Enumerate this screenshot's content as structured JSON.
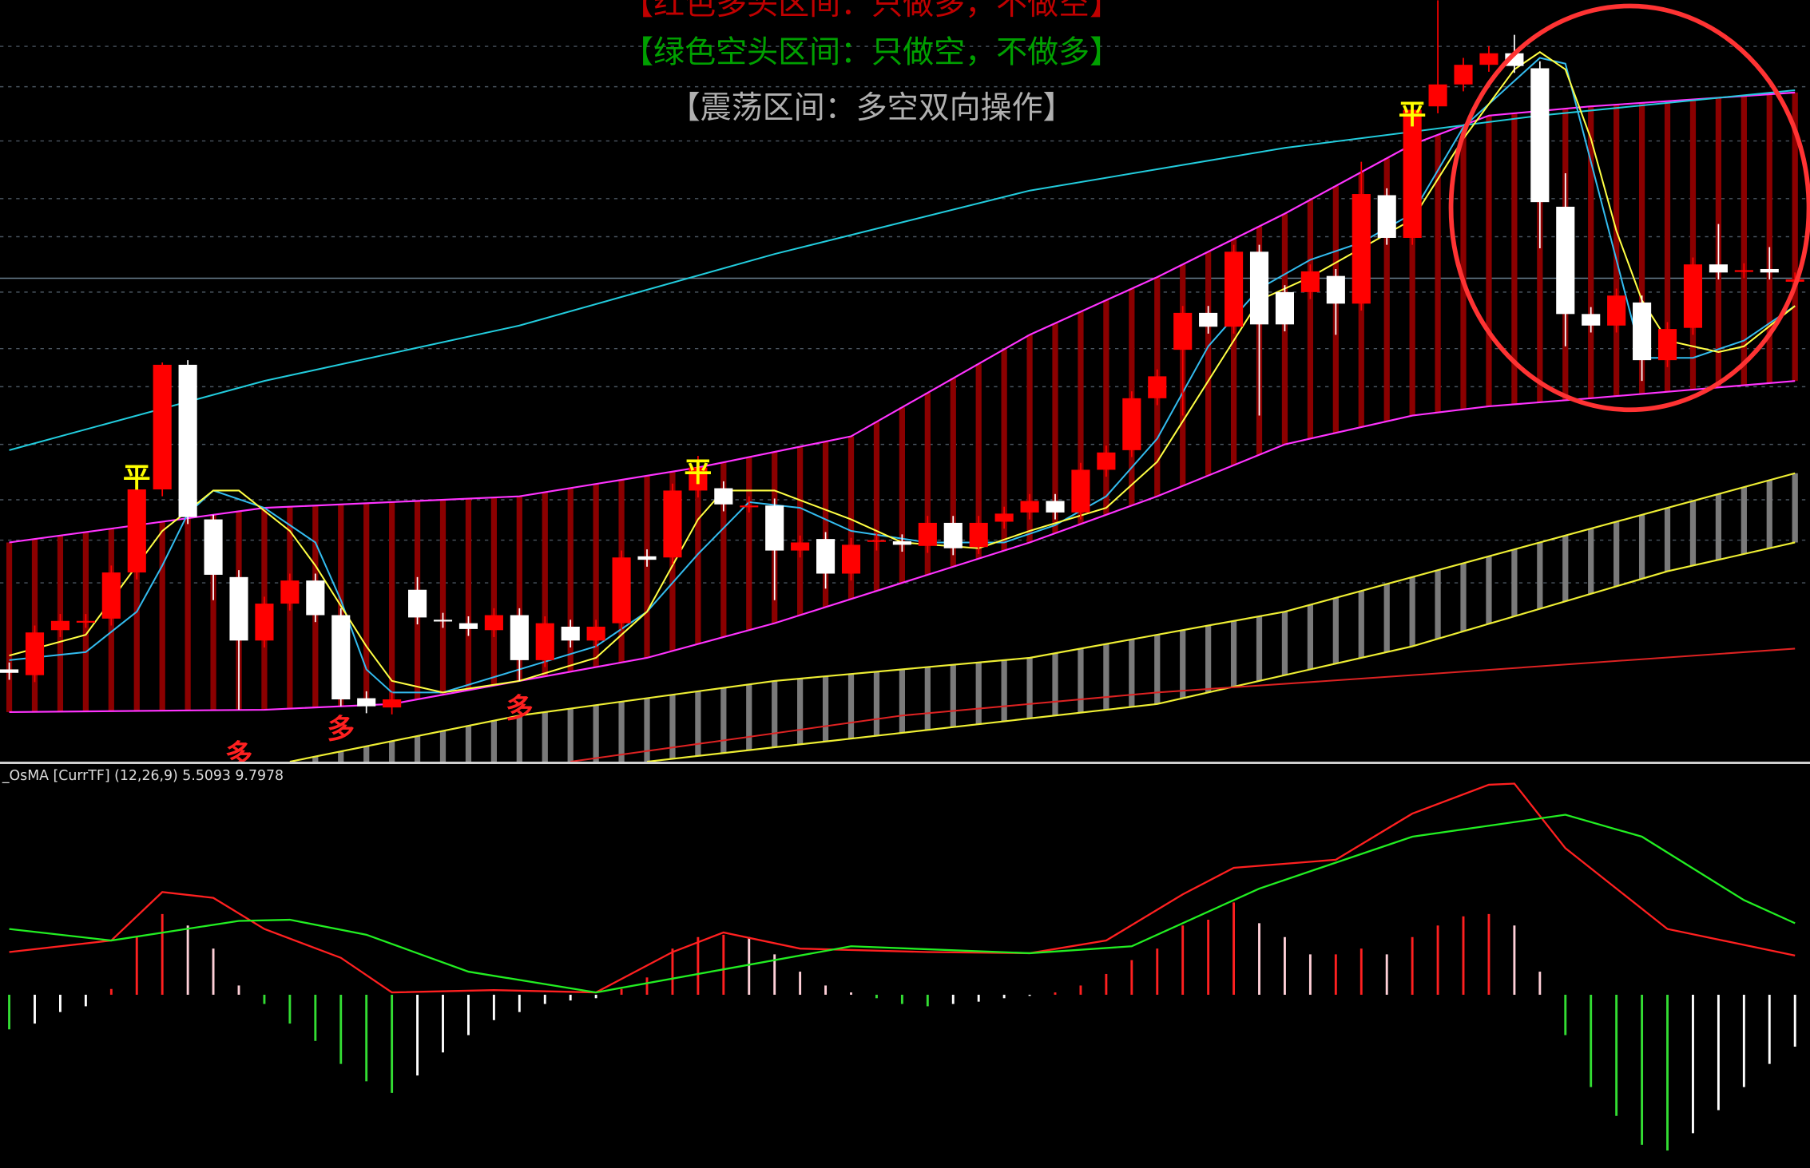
{
  "chart_data": [
    {
      "type": "candlestick",
      "annotations": [
        {
          "text": "【红色多头区间：只做多，不做空】",
          "color": "#c00000"
        },
        {
          "text": "【绿色空头区间：只做空，不做多】",
          "color": "#00a000"
        },
        {
          "text": "【震荡区间：多空双向操作】",
          "color": "#b0b0b0"
        }
      ],
      "markers": [
        {
          "text": "平",
          "at": 5,
          "y": 245,
          "color": "#ffff00"
        },
        {
          "text": "平",
          "at": 27,
          "y": 250,
          "color": "#ffff00"
        },
        {
          "text": "平",
          "at": 55,
          "y": 560,
          "color": "#ffff00"
        },
        {
          "text": "多",
          "at": 9,
          "y": 5,
          "color": "#ff2020"
        },
        {
          "text": "多",
          "at": 13,
          "y": 27,
          "color": "#ff2020"
        },
        {
          "text": "多",
          "at": 20,
          "y": 45,
          "color": "#ff2020"
        }
      ],
      "open": [
        80,
        75,
        114,
        122,
        124,
        164,
        236,
        344,
        210,
        160,
        105,
        137,
        157,
        127,
        55,
        47,
        149,
        123,
        120,
        114,
        127,
        88,
        117,
        105,
        120,
        178,
        177,
        235,
        237,
        222,
        222,
        183,
        193,
        163,
        192,
        191,
        187,
        207,
        186,
        208,
        216,
        226,
        216,
        253,
        270,
        315,
        357,
        389,
        377,
        442,
        407,
        407,
        421,
        397,
        491,
        454,
        568,
        587,
        604,
        614,
        601,
        481,
        388,
        378,
        398,
        348,
        376,
        431,
        425,
        427,
        416
      ],
      "high": [
        86,
        118,
        128,
        128,
        170,
        250,
        346,
        348,
        214,
        166,
        143,
        163,
        163,
        133,
        61,
        60,
        160,
        129,
        126,
        133,
        133,
        126,
        123,
        123,
        183,
        184,
        241,
        265,
        243,
        230,
        228,
        196,
        199,
        194,
        198,
        197,
        213,
        213,
        213,
        221,
        232,
        232,
        259,
        274,
        321,
        340,
        395,
        395,
        448,
        448,
        413,
        431,
        427,
        520,
        497,
        571,
        660,
        610,
        620,
        630,
        607,
        510,
        394,
        410,
        404,
        381,
        437,
        466,
        432,
        446,
        424
      ],
      "low": [
        71,
        69,
        108,
        116,
        118,
        158,
        230,
        206,
        140,
        45,
        99,
        131,
        121,
        48,
        42,
        41,
        119,
        116,
        109,
        108,
        70,
        82,
        99,
        99,
        114,
        169,
        171,
        229,
        217,
        216,
        140,
        177,
        150,
        157,
        183,
        182,
        181,
        179,
        180,
        202,
        210,
        210,
        210,
        247,
        264,
        309,
        300,
        371,
        371,
        300,
        373,
        401,
        370,
        391,
        448,
        448,
        562,
        581,
        598,
        597,
        445,
        360,
        372,
        372,
        330,
        342,
        370,
        418,
        419,
        418,
        410
      ],
      "close": [
        77,
        112,
        122,
        122,
        164,
        236,
        344,
        212,
        162,
        105,
        137,
        157,
        127,
        54,
        48,
        54,
        125,
        122,
        115,
        127,
        88,
        120,
        105,
        117,
        177,
        175,
        235,
        255,
        223,
        222,
        183,
        190,
        163,
        188,
        192,
        188,
        207,
        185,
        207,
        215,
        226,
        216,
        253,
        268,
        315,
        334,
        389,
        377,
        442,
        379,
        379,
        425,
        397,
        492,
        454,
        565,
        587,
        604,
        614,
        603,
        485,
        388,
        378,
        404,
        348,
        375,
        431,
        424,
        426,
        424,
        418
      ],
      "up_color": "#ff0000",
      "down_color": "#ffffff",
      "ylim": [
        0,
        660
      ],
      "yticks": [
        620,
        585,
        538,
        488,
        455,
        407,
        358,
        325,
        275,
        227,
        192,
        155
      ],
      "hline": 419,
      "lines": [
        {
          "color": "#22ccdd",
          "x": [
            0,
            10,
            20,
            30,
            40,
            50,
            60,
            70
          ],
          "values": [
            270,
            330,
            378,
            440,
            495,
            532,
            560,
            582
          ]
        },
        {
          "color": "#33bbee",
          "x": [
            0,
            3,
            5,
            6,
            7,
            8,
            10,
            12,
            13,
            14,
            15,
            17,
            20,
            23,
            25,
            27,
            29,
            31,
            33,
            36,
            39,
            41,
            43,
            45,
            47,
            49,
            51,
            53,
            55,
            57,
            59,
            60,
            61,
            64,
            66,
            68,
            70
          ],
          "values": [
            88,
            95,
            130,
            170,
            215,
            235,
            220,
            190,
            140,
            80,
            60,
            60,
            80,
            100,
            130,
            180,
            225,
            220,
            200,
            190,
            190,
            205,
            230,
            280,
            360,
            410,
            435,
            450,
            475,
            550,
            590,
            610,
            605,
            350,
            350,
            365,
            395
          ]
        },
        {
          "color": "#ffff44",
          "x": [
            0,
            3,
            6,
            8,
            9,
            11,
            12,
            14,
            15,
            17,
            20,
            23,
            25,
            27,
            28,
            30,
            33,
            35,
            38,
            40,
            43,
            45,
            47,
            49,
            51,
            53,
            55,
            57,
            59,
            60,
            61,
            62,
            63,
            64,
            65,
            67,
            68,
            70
          ],
          "values": [
            92,
            110,
            200,
            235,
            235,
            200,
            170,
            100,
            70,
            60,
            70,
            90,
            130,
            210,
            235,
            235,
            210,
            190,
            185,
            200,
            220,
            260,
            330,
            400,
            420,
            445,
            470,
            540,
            600,
            615,
            600,
            540,
            460,
            400,
            365,
            355,
            360,
            395
          ]
        },
        {
          "color": "#dd2222",
          "x": [
            22,
            35,
            45,
            55,
            70
          ],
          "values": [
            0,
            40,
            60,
            75,
            98
          ]
        }
      ],
      "envelope": {
        "color": "#ff33ff",
        "fill": "#8b0000",
        "upper": {
          "x": [
            0,
            10,
            20,
            27,
            33,
            40,
            45,
            50,
            55,
            58,
            62,
            70
          ],
          "values": [
            190,
            220,
            230,
            255,
            282,
            370,
            420,
            475,
            535,
            560,
            568,
            580
          ]
        },
        "lower": {
          "x": [
            0,
            10,
            15,
            20,
            25,
            30,
            40,
            45,
            50,
            55,
            58,
            62,
            70
          ],
          "values": [
            43,
            45,
            50,
            70,
            90,
            120,
            190,
            230,
            275,
            300,
            308,
            315,
            330
          ]
        }
      },
      "bands": {
        "color": "#eeee33",
        "fill": "#7a7a7a",
        "upper": {
          "x": [
            11,
            20,
            30,
            40,
            50,
            60,
            70
          ],
          "values": [
            0,
            40,
            70,
            90,
            130,
            190,
            250
          ]
        },
        "lower": {
          "x": [
            25,
            35,
            45,
            55,
            65,
            70
          ],
          "values": [
            0,
            25,
            50,
            100,
            165,
            190
          ]
        }
      }
    },
    {
      "type": "histogram",
      "label": "_OsMA [CurrTF] (12,26,9) 5.5093 9.7978",
      "values": [
        -30,
        -25,
        -15,
        -10,
        5,
        50,
        70,
        60,
        40,
        8,
        -8,
        -25,
        -40,
        -60,
        -75,
        -85,
        -70,
        -50,
        -35,
        -22,
        -15,
        -8,
        -5,
        -3,
        5,
        15,
        40,
        50,
        52,
        50,
        35,
        20,
        8,
        2,
        -3,
        -8,
        -10,
        -8,
        -6,
        -3,
        -1,
        2,
        8,
        18,
        30,
        40,
        60,
        65,
        80,
        62,
        50,
        35,
        35,
        40,
        35,
        50,
        60,
        68,
        70,
        60,
        20,
        -35,
        -80,
        -105,
        -130,
        -135,
        -120,
        -100,
        -80,
        -60,
        -45
      ],
      "colors": {
        "up_rising": "#ff2020",
        "up_falling": "#ffd0d8",
        "down_falling": "#33dd33",
        "down_rising": "#ffffff"
      },
      "ylim": [
        -150,
        195
      ],
      "lines": [
        {
          "color": "#ff2020",
          "x": [
            0,
            4,
            6,
            8,
            10,
            13,
            15,
            19,
            23,
            26,
            28,
            31,
            36,
            40,
            43,
            46,
            48,
            52,
            55,
            58,
            59,
            61,
            65,
            70
          ],
          "values": [
            37,
            47,
            89,
            84,
            57,
            32,
            2,
            4,
            2,
            37,
            54,
            40,
            37,
            36,
            47,
            87,
            110,
            117,
            157,
            182,
            183,
            127,
            57,
            34
          ]
        },
        {
          "color": "#22ee22",
          "x": [
            0,
            4,
            9,
            11,
            14,
            18,
            23,
            28,
            33,
            40,
            44,
            49,
            55,
            61,
            64,
            68,
            70
          ],
          "values": [
            57,
            47,
            64,
            65,
            52,
            20,
            2,
            22,
            42,
            36,
            42,
            92,
            137,
            156,
            137,
            82,
            62
          ]
        }
      ]
    }
  ]
}
